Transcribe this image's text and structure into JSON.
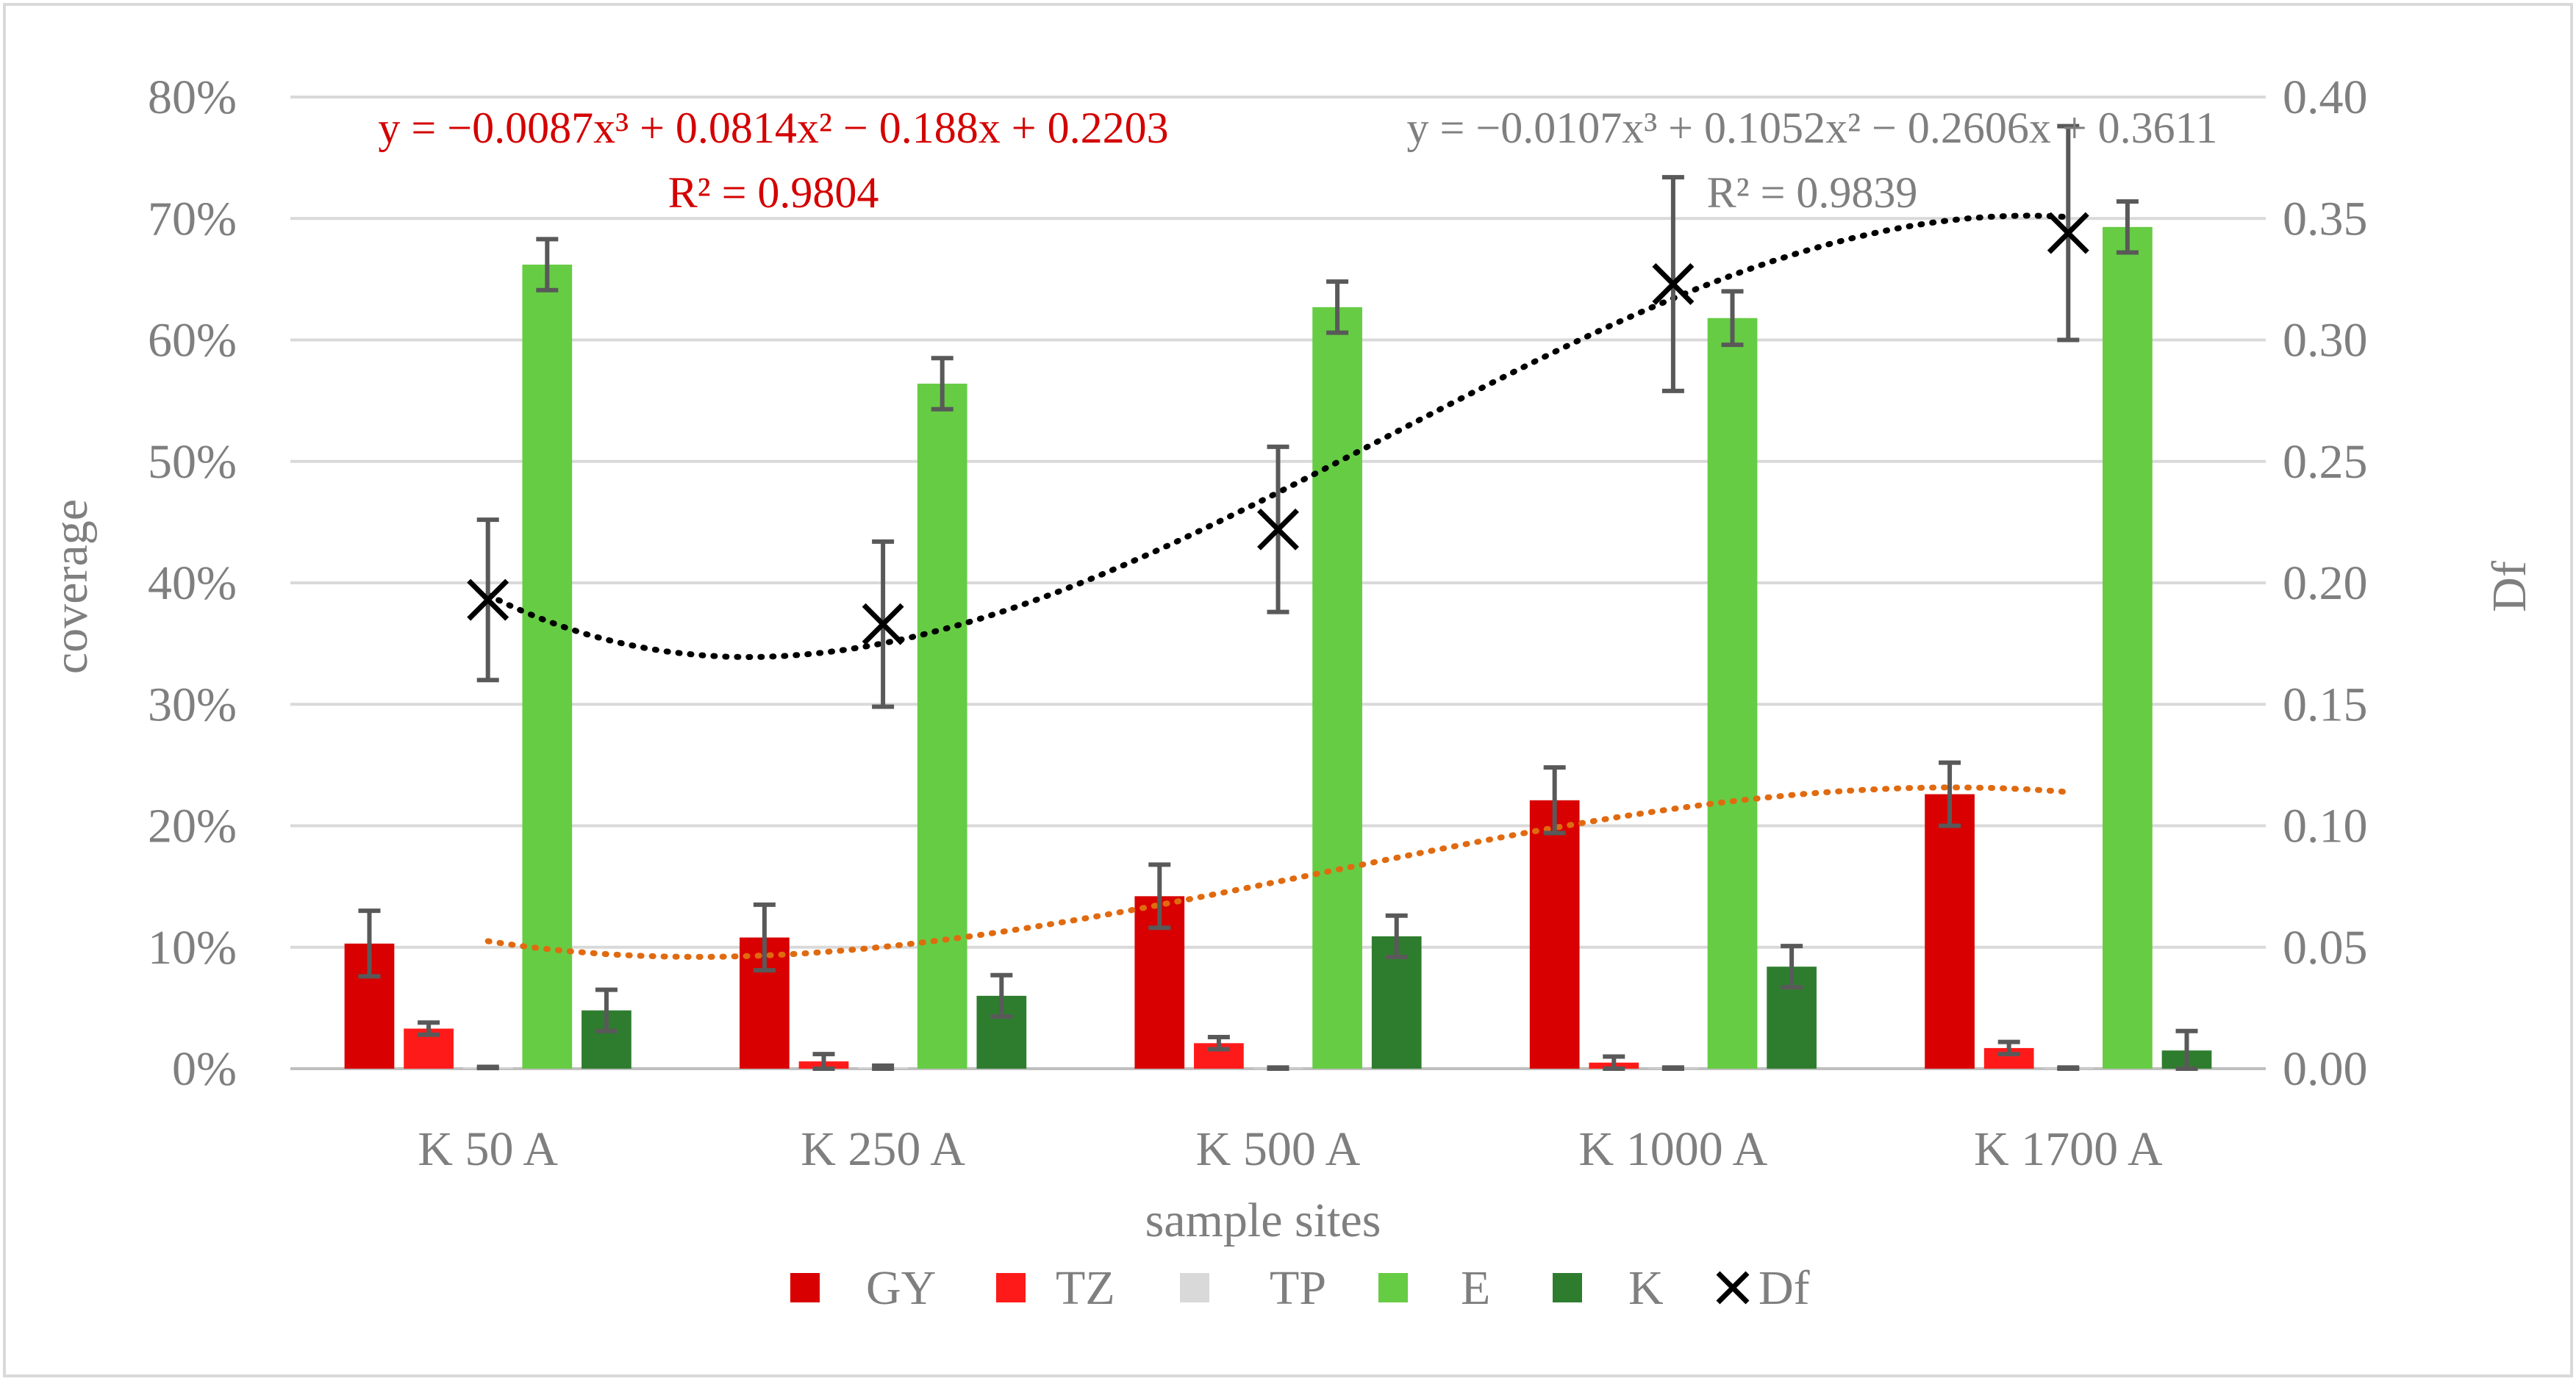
{
  "chart_data": {
    "type": "bar",
    "categories": [
      "K 50 A",
      "K 250 A",
      "K 500 A",
      "K 1000 A",
      "K 1700 A"
    ],
    "xlabel": "sample sites",
    "ylabel": "coverage",
    "y2label": "Df",
    "ylim": [
      0,
      80
    ],
    "y2lim": [
      0,
      0.4
    ],
    "y_ticks": [
      "0%",
      "10%",
      "20%",
      "30%",
      "40%",
      "50%",
      "60%",
      "70%",
      "80%"
    ],
    "y2_ticks": [
      "0.00",
      "0.05",
      "0.10",
      "0.15",
      "0.20",
      "0.25",
      "0.30",
      "0.35",
      "0.40"
    ],
    "grid": true,
    "legend_position": "bottom",
    "series": [
      {
        "name": "GY",
        "axis": "left",
        "color": "#d80000",
        "values": [
          10.3,
          10.8,
          14.2,
          22.1,
          22.6
        ],
        "errors": [
          2.7,
          2.7,
          2.6,
          2.7,
          2.6
        ]
      },
      {
        "name": "TZ",
        "axis": "left",
        "color": "#ff1a1a",
        "values": [
          3.3,
          0.6,
          2.1,
          0.5,
          1.7
        ],
        "errors": [
          0.5,
          0.6,
          0.5,
          0.5,
          0.5
        ]
      },
      {
        "name": "TP",
        "axis": "left",
        "color": "#d9d9d9",
        "values": [
          0.1,
          0.1,
          0.05,
          0.05,
          0.05
        ],
        "errors": [
          0.05,
          0.15,
          0.05,
          0.05,
          0.05
        ]
      },
      {
        "name": "E",
        "axis": "left",
        "color": "#66cc44",
        "values": [
          66.2,
          56.4,
          62.7,
          61.8,
          69.3
        ],
        "errors": [
          2.1,
          2.1,
          2.1,
          2.2,
          2.1
        ]
      },
      {
        "name": "K",
        "axis": "left",
        "color": "#2e7d2e",
        "values": [
          4.8,
          6.0,
          10.9,
          8.4,
          1.5
        ],
        "errors": [
          1.7,
          1.7,
          1.7,
          1.7,
          1.6
        ]
      },
      {
        "name": "Df",
        "axis": "right",
        "type": "scatter",
        "marker": "x",
        "color": "#000000",
        "values": [
          0.193,
          0.183,
          0.222,
          0.323,
          0.344
        ],
        "errors": [
          0.033,
          0.034,
          0.034,
          0.044,
          0.044
        ]
      }
    ],
    "trendlines": [
      {
        "for": "GY",
        "axis": "left",
        "color": "#e06a10",
        "coefficients": [
          -0.0087,
          0.0814,
          -0.188,
          0.2203
        ],
        "equation": "y = −0.0087x³ + 0.0814x² − 0.188x + 0.2203",
        "r2": "R² = 0.9804",
        "label_color": "#d40000"
      },
      {
        "for": "Df",
        "axis": "right",
        "color": "#000000",
        "coefficients": [
          -0.0107,
          0.1052,
          -0.2606,
          0.3611
        ],
        "equation": "y = −0.0107x³ + 0.1052x² − 0.2606x + 0.3611",
        "r2": "R² = 0.9839",
        "label_color": "#7f7f7f"
      }
    ]
  }
}
